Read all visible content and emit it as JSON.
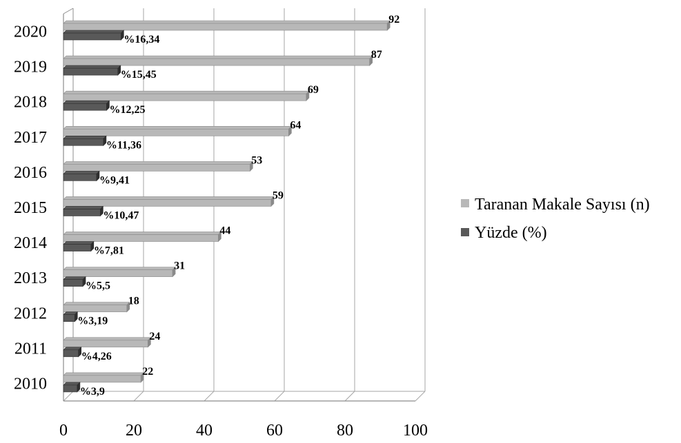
{
  "chart_data": {
    "type": "bar",
    "orientation": "horizontal",
    "categories": [
      "2010",
      "2011",
      "2012",
      "2013",
      "2014",
      "2015",
      "2016",
      "2017",
      "2018",
      "2019",
      "2020"
    ],
    "series": [
      {
        "name": "Taranan Makale Sayısı (n)",
        "values": [
          22,
          24,
          18,
          31,
          44,
          59,
          53,
          64,
          69,
          87,
          92
        ],
        "labels": [
          "22",
          "24",
          "18",
          "31",
          "44",
          "59",
          "53",
          "64",
          "69",
          "87",
          "92"
        ],
        "color": "#b8b8b8"
      },
      {
        "name": "Yüzde (%)",
        "values": [
          3.9,
          4.26,
          3.19,
          5.5,
          7.81,
          10.47,
          9.41,
          11.36,
          12.25,
          15.45,
          16.34
        ],
        "labels": [
          "%3,9",
          "%4,26",
          "%3,19",
          "%5,5",
          "%7,81",
          "%10,47",
          "%9,41",
          "%11,36",
          "%12,25",
          "%15,45",
          "%16,34"
        ],
        "color": "#595959"
      }
    ],
    "xticks": [
      "0",
      "20",
      "40",
      "60",
      "80",
      "100"
    ],
    "xlim": [
      0,
      100
    ],
    "grid": true,
    "legend_position": "right"
  }
}
